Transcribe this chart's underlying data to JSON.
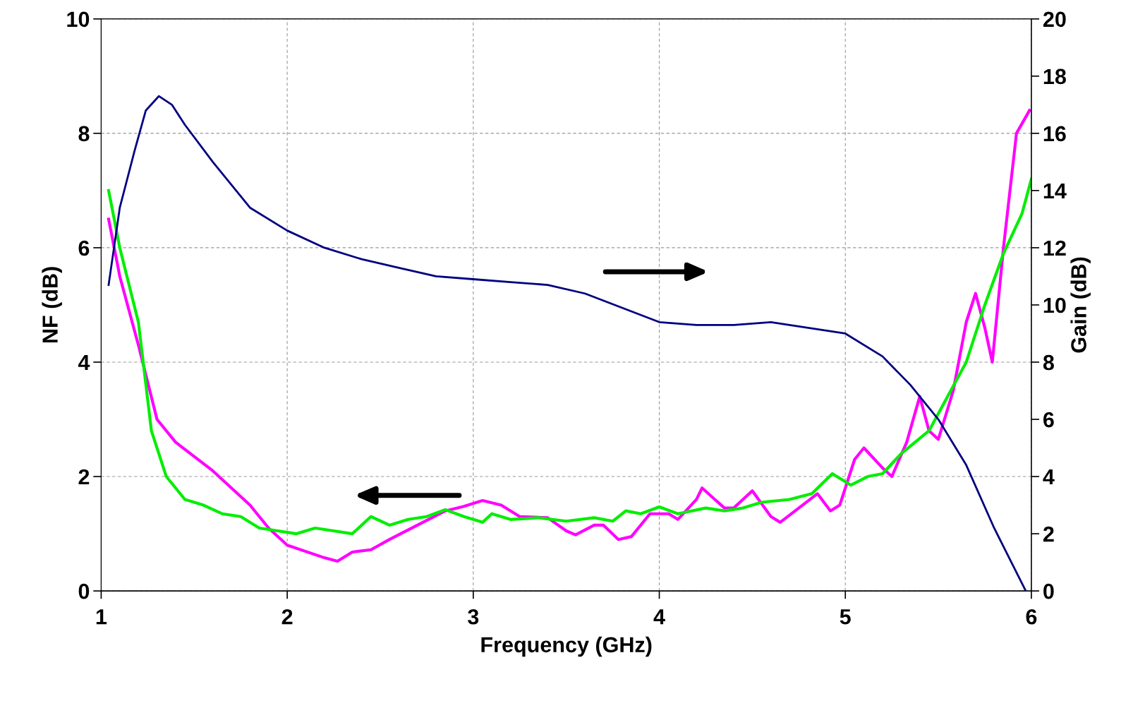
{
  "chart_data": {
    "type": "line",
    "xlabel": "Frequency (GHz)",
    "ylabel": "NF (dB)",
    "y2label": "Gain (dB)",
    "xlim": [
      1,
      6
    ],
    "xticks": [
      1,
      2,
      3,
      4,
      5,
      6
    ],
    "ylim": [
      0,
      10
    ],
    "yticks": [
      0,
      2,
      4,
      6,
      8,
      10
    ],
    "y2lim": [
      0,
      20
    ],
    "y2ticks": [
      0,
      2,
      4,
      6,
      8,
      10,
      12,
      14,
      16,
      18,
      20
    ],
    "grid": true,
    "marker": "none",
    "line_style": "solid",
    "series": [
      {
        "color": "#ff00ff",
        "x": [
          1.04,
          1.1,
          1.2,
          1.3,
          1.4,
          1.6,
          1.8,
          1.9,
          2.0,
          2.2,
          2.27,
          2.35,
          2.45,
          2.55,
          2.7,
          2.85,
          2.95,
          3.05,
          3.15,
          3.25,
          3.4,
          3.5,
          3.55,
          3.65,
          3.7,
          3.78,
          3.85,
          3.95,
          4.05,
          4.1,
          4.2,
          4.23,
          4.35,
          4.4,
          4.5,
          4.6,
          4.65,
          4.75,
          4.85,
          4.92,
          4.97,
          5.05,
          5.1,
          5.2,
          5.25,
          5.33,
          5.4,
          5.45,
          5.5,
          5.58,
          5.65,
          5.7,
          5.75,
          5.79,
          5.85,
          5.92,
          5.99
        ],
        "values": [
          6.5,
          5.5,
          4.3,
          3.0,
          2.6,
          2.1,
          1.5,
          1.1,
          0.8,
          0.58,
          0.52,
          0.68,
          0.72,
          0.9,
          1.15,
          1.4,
          1.48,
          1.58,
          1.5,
          1.3,
          1.28,
          1.05,
          0.98,
          1.15,
          1.15,
          0.9,
          0.95,
          1.35,
          1.35,
          1.25,
          1.6,
          1.8,
          1.45,
          1.45,
          1.75,
          1.3,
          1.2,
          1.45,
          1.7,
          1.4,
          1.5,
          2.3,
          2.5,
          2.15,
          2.0,
          2.6,
          3.4,
          2.8,
          2.65,
          3.5,
          4.7,
          5.2,
          4.6,
          4.0,
          6.0,
          8.0,
          8.4
        ]
      },
      {
        "color": "#00ee00",
        "x": [
          1.04,
          1.1,
          1.2,
          1.27,
          1.35,
          1.45,
          1.55,
          1.65,
          1.75,
          1.85,
          1.95,
          2.05,
          2.15,
          2.25,
          2.35,
          2.45,
          2.55,
          2.65,
          2.75,
          2.85,
          2.95,
          3.05,
          3.1,
          3.2,
          3.35,
          3.5,
          3.65,
          3.75,
          3.82,
          3.9,
          4.0,
          4.1,
          4.25,
          4.35,
          4.45,
          4.55,
          4.7,
          4.82,
          4.93,
          5.03,
          5.12,
          5.2,
          5.3,
          5.45,
          5.55,
          5.65,
          5.75,
          5.85,
          5.95,
          6.0
        ],
        "values": [
          7.0,
          6.0,
          4.7,
          2.8,
          2.0,
          1.6,
          1.5,
          1.35,
          1.3,
          1.1,
          1.05,
          1.0,
          1.1,
          1.05,
          1.0,
          1.3,
          1.15,
          1.25,
          1.3,
          1.42,
          1.3,
          1.2,
          1.35,
          1.25,
          1.28,
          1.22,
          1.28,
          1.22,
          1.4,
          1.35,
          1.47,
          1.35,
          1.45,
          1.4,
          1.45,
          1.55,
          1.6,
          1.7,
          2.05,
          1.85,
          2.0,
          2.05,
          2.4,
          2.8,
          3.4,
          4.0,
          5.0,
          5.9,
          6.6,
          7.2
        ]
      },
      {
        "color": "#000080",
        "axis": "y2",
        "x": [
          1.04,
          1.1,
          1.18,
          1.24,
          1.31,
          1.38,
          1.45,
          1.6,
          1.8,
          2.0,
          2.2,
          2.4,
          2.6,
          2.8,
          3.0,
          3.2,
          3.4,
          3.6,
          3.8,
          4.0,
          4.2,
          4.4,
          4.6,
          4.8,
          5.0,
          5.2,
          5.35,
          5.5,
          5.65,
          5.8,
          5.97
        ],
        "values": [
          10.7,
          13.4,
          15.4,
          16.8,
          17.3,
          17.0,
          16.3,
          15.0,
          13.4,
          12.6,
          12.0,
          11.6,
          11.3,
          11.0,
          10.9,
          10.8,
          10.7,
          10.4,
          9.9,
          9.4,
          9.3,
          9.3,
          9.4,
          9.2,
          9.0,
          8.2,
          7.2,
          6.0,
          4.4,
          2.2,
          0
        ]
      }
    ]
  }
}
